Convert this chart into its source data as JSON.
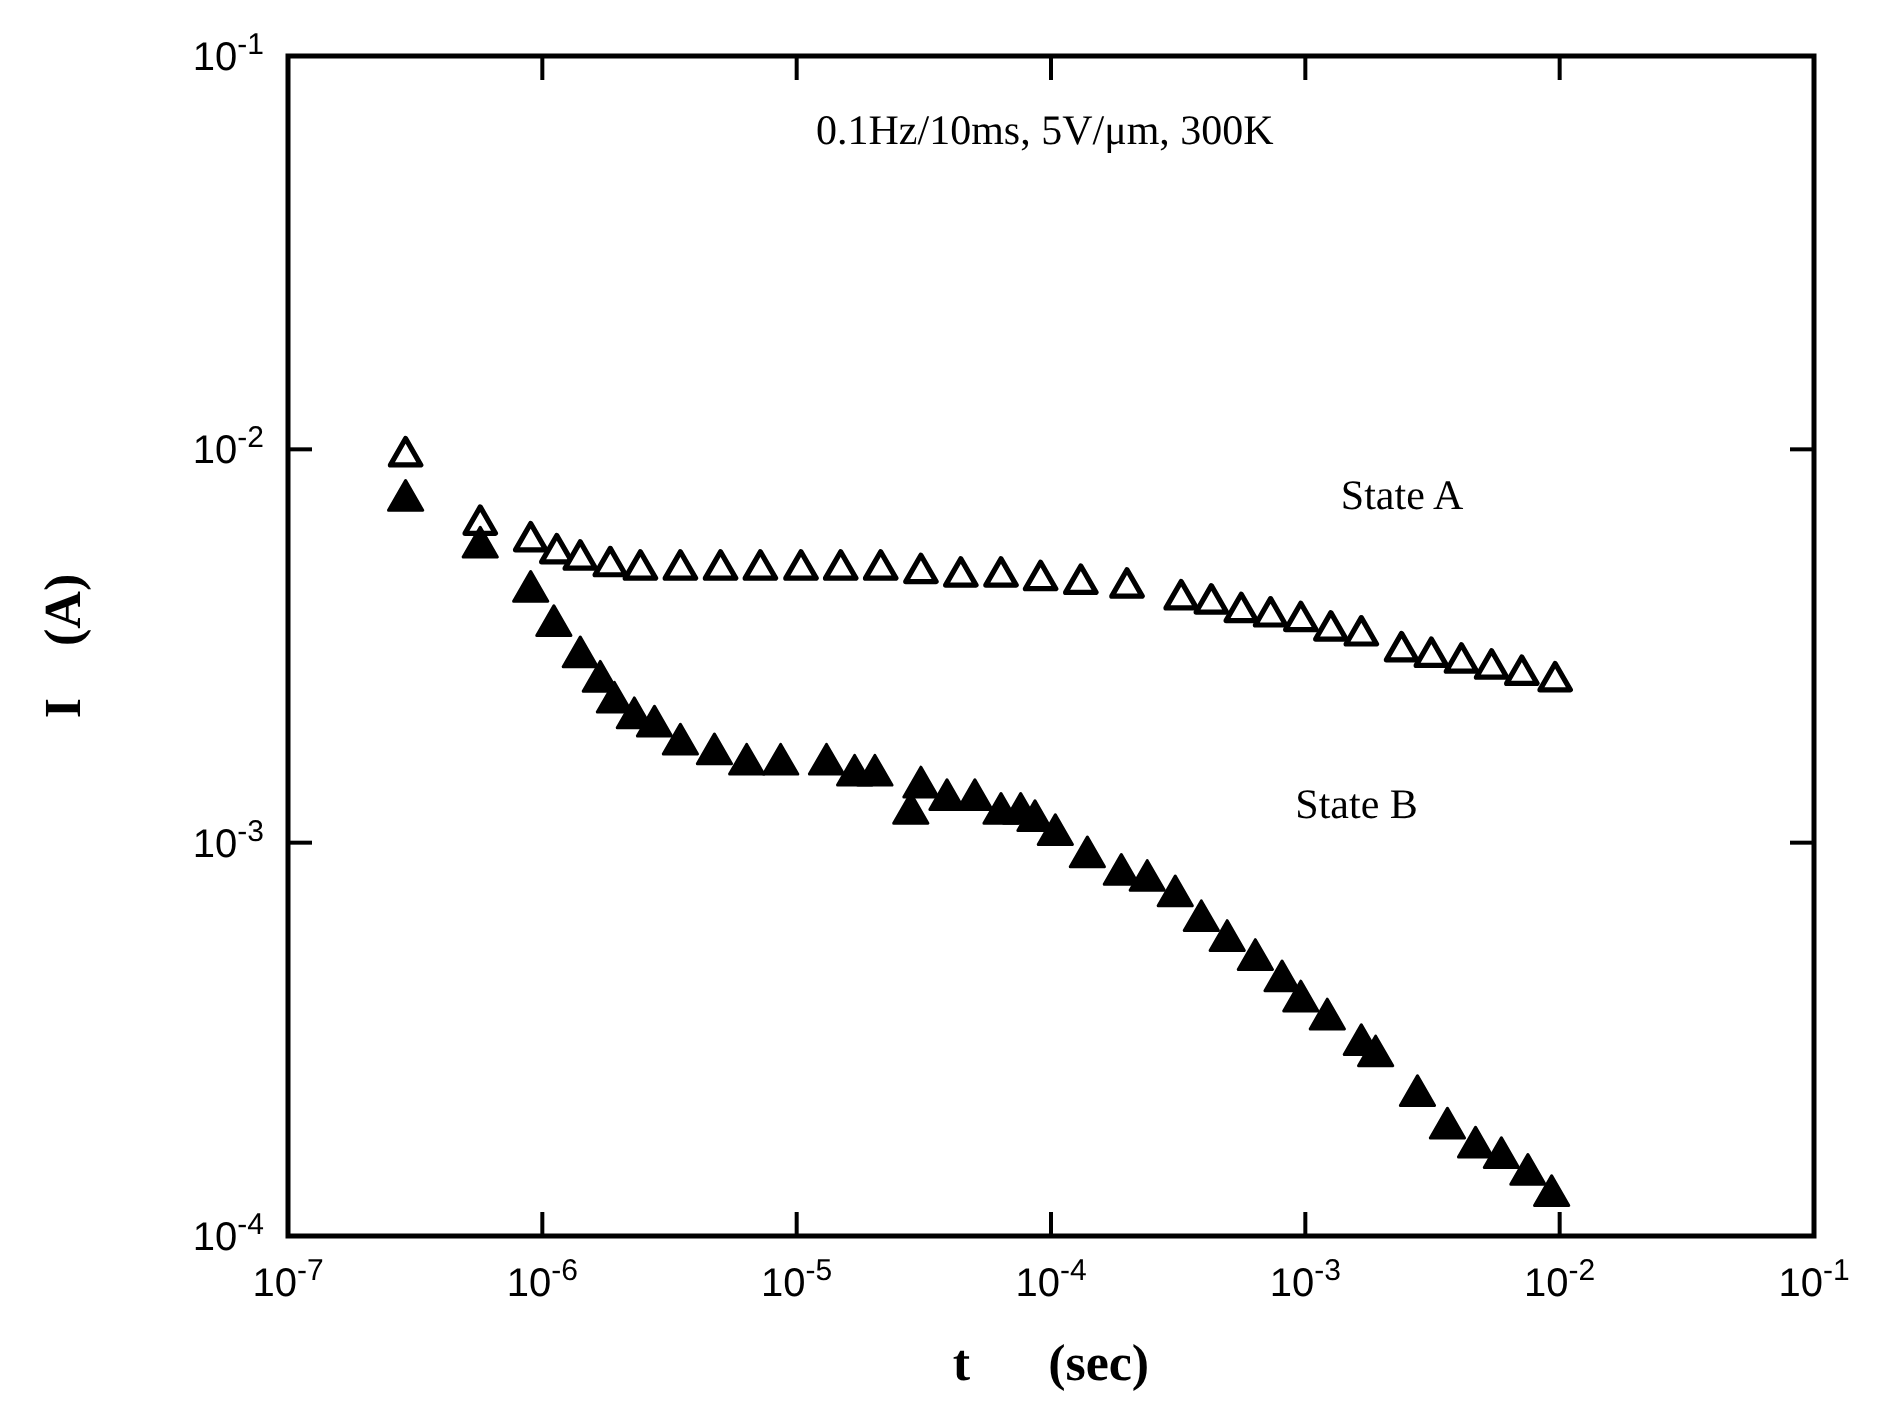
{
  "chart_data": {
    "type": "scatter",
    "xlabel": "t      (sec)",
    "ylabel": "I    (A)",
    "log": "xy",
    "grid": false,
    "xlim": [
      1e-07,
      0.1
    ],
    "ylim": [
      0.0001,
      0.1
    ],
    "xticks": [
      {
        "value": 1e-07,
        "label": "10$^{-7}$"
      },
      {
        "value": 1e-06,
        "label": "10$^{-6}$"
      },
      {
        "value": 1e-05,
        "label": "10$^{-5}$"
      },
      {
        "value": 0.0001,
        "label": "10$^{-4}$"
      },
      {
        "value": 0.001,
        "label": "10$^{-3}$"
      },
      {
        "value": 0.01,
        "label": "10$^{-2}$"
      },
      {
        "value": 0.1,
        "label": "10$^{-1}$"
      }
    ],
    "yticks": [
      {
        "value": 0.0001,
        "label": "10$^{-4}$"
      },
      {
        "value": 0.001,
        "label": "10$^{-3}$"
      },
      {
        "value": 0.01,
        "label": "10$^{-2}$"
      },
      {
        "value": 0.1,
        "label": "10$^{-1}$"
      }
    ],
    "annotations": [
      "0.1Hz/10ms, 5V/μm, 300K"
    ],
    "series": [
      {
        "name": "State A",
        "color": "#000000",
        "marker": "triangle-open",
        "x": [
          2.9e-07,
          5.7e-07,
          9e-07,
          1.14e-06,
          1.41e-06,
          1.85e-06,
          2.43e-06,
          3.49e-06,
          5.02e-06,
          7.2e-06,
          1.04e-05,
          1.49e-05,
          2.14e-05,
          3.08e-05,
          4.42e-05,
          6.36e-05,
          9.1e-05,
          0.000131,
          0.000199,
          0.000325,
          0.000427,
          0.00056,
          0.00073,
          0.00096,
          0.00126,
          0.00166,
          0.00239,
          0.00313,
          0.00411,
          0.0054,
          0.0071,
          0.0096
        ],
        "values": [
          0.0097,
          0.0065,
          0.0059,
          0.0055,
          0.0053,
          0.0051,
          0.005,
          0.005,
          0.005,
          0.005,
          0.005,
          0.005,
          0.005,
          0.0049,
          0.0048,
          0.0048,
          0.0047,
          0.0046,
          0.0045,
          0.0042,
          0.0041,
          0.0039,
          0.0038,
          0.0037,
          0.0035,
          0.0034,
          0.0031,
          0.003,
          0.0029,
          0.0028,
          0.0027,
          0.0026
        ]
      },
      {
        "name": "State B",
        "color": "#000000",
        "marker": "triangle",
        "x": [
          2.9e-07,
          5.7e-07,
          9e-07,
          1.11e-06,
          1.41e-06,
          1.69e-06,
          1.92e-06,
          2.3e-06,
          2.76e-06,
          3.49e-06,
          4.75e-06,
          6.36e-06,
          8.65e-06,
          1.31e-05,
          1.69e-05,
          2.03e-05,
          2.81e-05,
          3.08e-05,
          3.9e-05,
          5.02e-05,
          6.36e-05,
          7.6e-05,
          8.65e-05,
          0.000104,
          0.000139,
          0.000189,
          0.000239,
          0.000308,
          0.00039,
          0.000493,
          0.000636,
          0.00081,
          0.00096,
          0.00122,
          0.00166,
          0.00189,
          0.00276,
          0.00362,
          0.00467,
          0.0059,
          0.0075,
          0.0093
        ],
        "values": [
          0.0075,
          0.0057,
          0.0044,
          0.0036,
          0.003,
          0.0026,
          0.0023,
          0.0021,
          0.002,
          0.0018,
          0.0017,
          0.0016,
          0.0016,
          0.0016,
          0.0015,
          0.0015,
          0.0012,
          0.0014,
          0.0013,
          0.0013,
          0.0012,
          0.0012,
          0.00115,
          0.00106,
          0.00093,
          0.00084,
          0.00081,
          0.00074,
          0.00064,
          0.00057,
          0.00051,
          0.00045,
          0.0004,
          0.00036,
          0.00031,
          0.00029,
          0.00023,
          0.00019,
          0.00017,
          0.00016,
          0.000145,
          0.000128
        ]
      }
    ]
  }
}
